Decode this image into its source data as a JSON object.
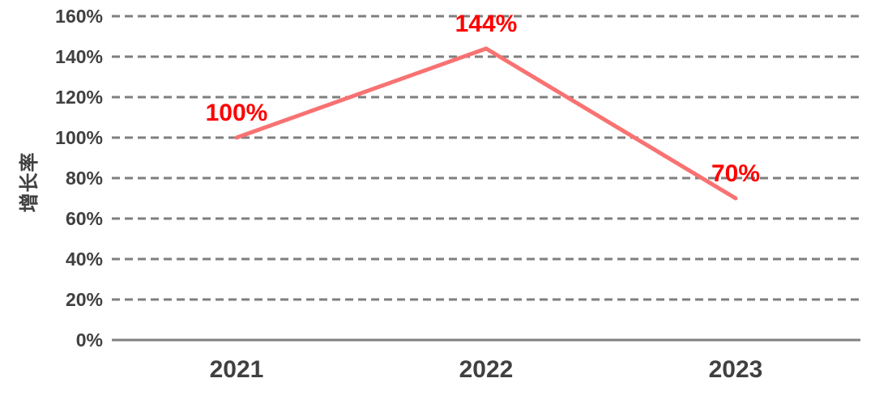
{
  "chart_data": {
    "type": "line",
    "categories": [
      "2021",
      "2022",
      "2023"
    ],
    "series": [
      {
        "name": "增长率",
        "values": [
          100,
          144,
          70
        ]
      }
    ],
    "point_labels": [
      "100%",
      "144%",
      "70%"
    ],
    "title": "",
    "xlabel": "",
    "ylabel": "增长率",
    "ylim": [
      0,
      160
    ],
    "ytick_step": 20,
    "ytick_labels": [
      "0%",
      "20%",
      "40%",
      "60%",
      "80%",
      "100%",
      "120%",
      "140%",
      "160%"
    ],
    "grid": "horizontal-dashed",
    "legend_position": "none",
    "colors": {
      "line": "#F87272",
      "point_label": "#FF0000",
      "axis_text": "#404040",
      "gridline": "#7F7F7F",
      "axis_line": "#808080",
      "background": "#FFFFFF"
    }
  }
}
